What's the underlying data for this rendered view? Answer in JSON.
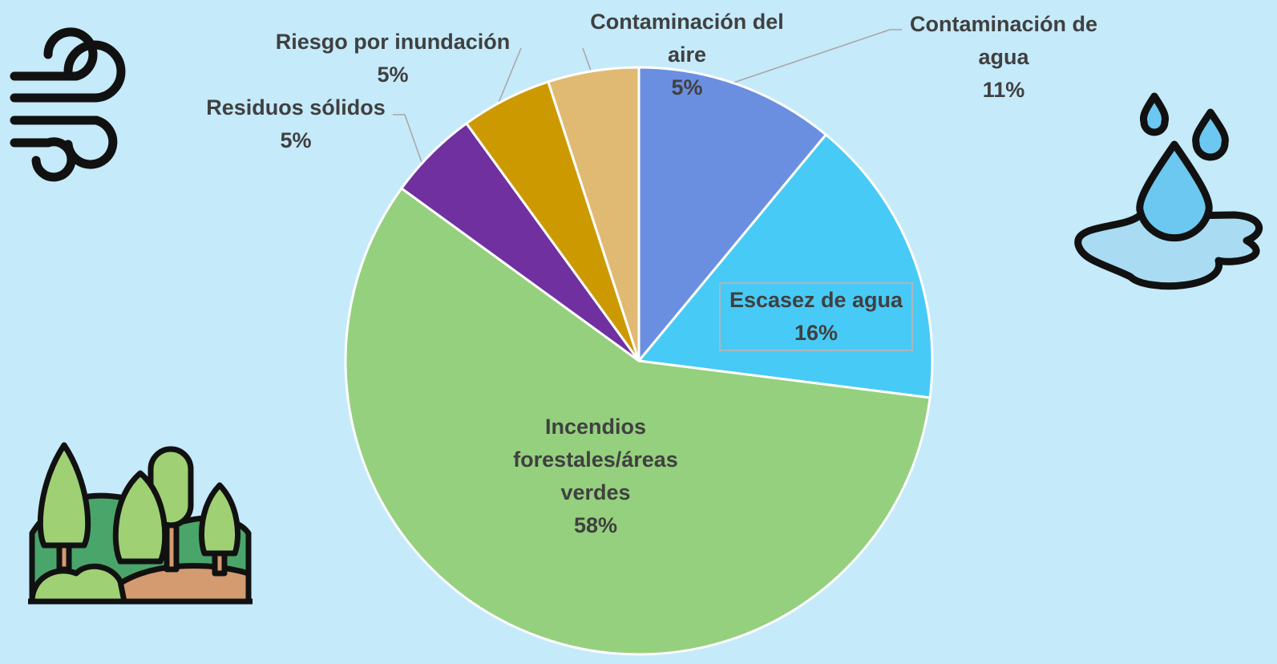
{
  "chart_data": {
    "type": "pie",
    "categories": [
      "Contaminación de agua",
      "Escasez de agua",
      "Incendios forestales/áreas verdes",
      "Residuos sólidos",
      "Riesgo por inundación",
      "Contaminación del aire"
    ],
    "values": [
      11,
      16,
      58,
      5,
      5,
      5
    ],
    "value_labels": [
      "11%",
      "16%",
      "58%",
      "5%",
      "5%",
      "5%"
    ],
    "colors": [
      "#6b8fe0",
      "#48caf6",
      "#95d07e",
      "#7030a0",
      "#cc9a00",
      "#e0ba72"
    ]
  }
}
